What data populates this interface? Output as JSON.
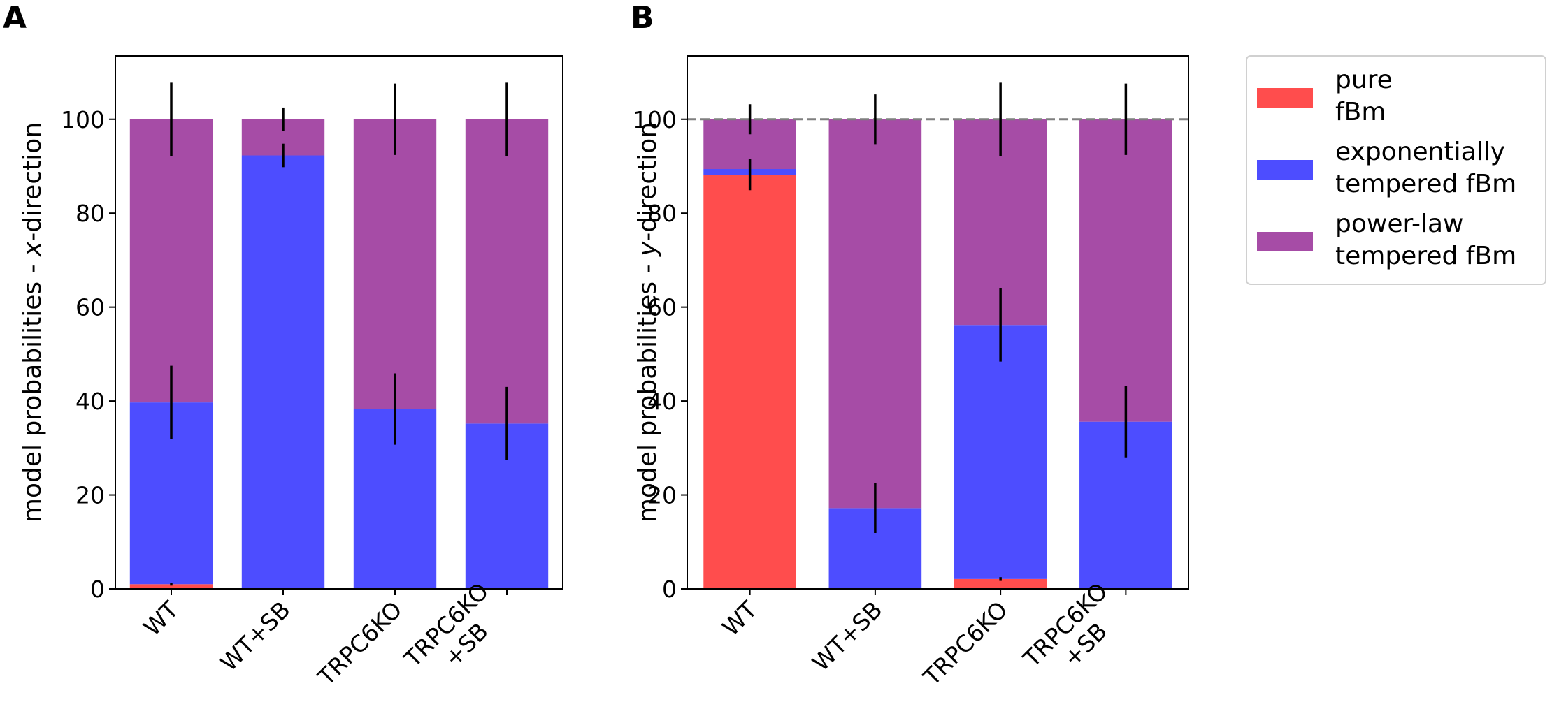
{
  "legend": {
    "items": [
      {
        "key": "pure",
        "lines": [
          "pure",
          "fBm"
        ],
        "color": "#ff4d4d"
      },
      {
        "key": "exp",
        "lines": [
          "exponentially",
          "tempered fBm"
        ],
        "color": "#4d4dff"
      },
      {
        "key": "pow",
        "lines": [
          "power-law",
          "tempered fBm"
        ],
        "color": "#a64ca6"
      }
    ]
  },
  "chart_data": [
    {
      "panel": "A",
      "type": "bar",
      "stacked": true,
      "categories": [
        [
          "WT"
        ],
        [
          "WT+SB"
        ],
        [
          "TRPC6KO"
        ],
        [
          "TRPC6KO",
          "+SB"
        ]
      ],
      "ylabel_parts": [
        {
          "t": "model probabilities - ",
          "italic": false
        },
        {
          "t": "x",
          "italic": true
        },
        {
          "t": "-direction",
          "italic": false
        }
      ],
      "ylim": [
        0,
        113.5
      ],
      "yticks": [
        0,
        20,
        40,
        60,
        80,
        100
      ],
      "reference_line": null,
      "series": [
        {
          "key": "pure",
          "values": [
            1.0,
            0.0,
            0.0,
            0.0
          ],
          "errors": [
            0.3,
            0,
            0,
            0
          ]
        },
        {
          "key": "exp",
          "values": [
            38.7,
            92.3,
            38.3,
            35.2
          ],
          "errors": [
            7.8,
            2.5,
            7.6,
            7.8
          ]
        },
        {
          "key": "pow",
          "values": [
            60.3,
            7.7,
            61.7,
            64.8
          ],
          "errors": [
            7.8,
            2.5,
            7.6,
            7.8
          ]
        }
      ]
    },
    {
      "panel": "B",
      "type": "bar",
      "stacked": true,
      "categories": [
        [
          "WT"
        ],
        [
          "WT+SB"
        ],
        [
          "TRPC6KO"
        ],
        [
          "TRPC6KO",
          "+SB"
        ]
      ],
      "ylabel_parts": [
        {
          "t": "model probabilities - ",
          "italic": false
        },
        {
          "t": "y",
          "italic": true
        },
        {
          "t": "-direction",
          "italic": false
        }
      ],
      "ylim": [
        0,
        113.5
      ],
      "yticks": [
        0,
        20,
        40,
        60,
        80,
        100
      ],
      "reference_line": 100,
      "series": [
        {
          "key": "pure",
          "values": [
            88.2,
            0.0,
            2.1,
            0.0
          ],
          "errors": [
            3.3,
            0,
            0.4,
            0
          ]
        },
        {
          "key": "exp",
          "values": [
            1.2,
            17.2,
            54.1,
            35.6
          ],
          "errors": [
            0,
            5.3,
            7.8,
            7.6
          ]
        },
        {
          "key": "pow",
          "values": [
            10.6,
            82.8,
            43.8,
            64.4
          ],
          "errors": [
            3.2,
            5.3,
            7.8,
            7.6
          ]
        }
      ]
    }
  ]
}
